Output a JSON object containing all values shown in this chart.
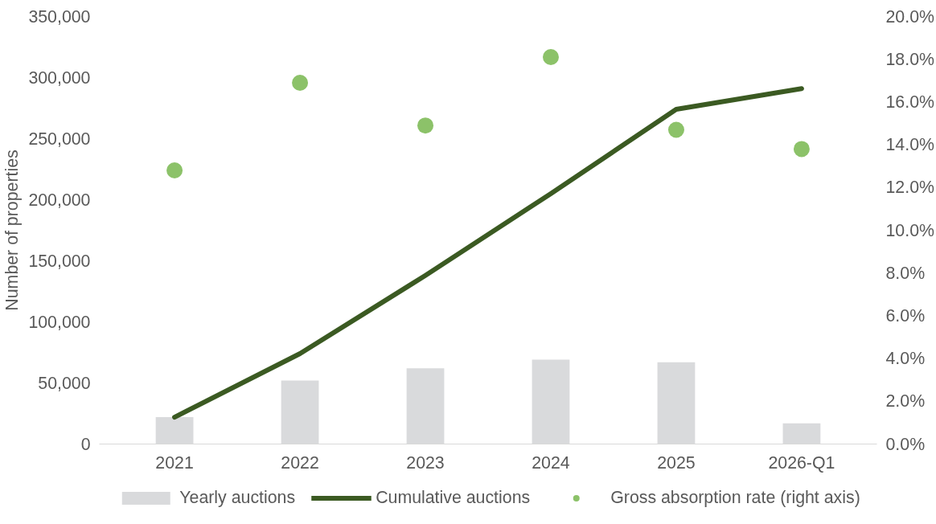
{
  "chart_data": {
    "type": "bar",
    "categories": [
      "2021",
      "2022",
      "2023",
      "2024",
      "2025",
      "2026-Q1"
    ],
    "ylabel": "Number of properties",
    "ylim": [
      0,
      350000
    ],
    "yticks": [
      {
        "value": 0,
        "label": "0"
      },
      {
        "value": 50000,
        "label": "50,000"
      },
      {
        "value": 100000,
        "label": "100,000"
      },
      {
        "value": 150000,
        "label": "150,000"
      },
      {
        "value": 200000,
        "label": "200,000"
      },
      {
        "value": 250000,
        "label": "250,000"
      },
      {
        "value": 300000,
        "label": "300,000"
      },
      {
        "value": 350000,
        "label": "350,000"
      }
    ],
    "y2lim": [
      0,
      20
    ],
    "y2ticks": [
      {
        "value": 0,
        "label": "0.0%"
      },
      {
        "value": 2,
        "label": "2.0%"
      },
      {
        "value": 4,
        "label": "4.0%"
      },
      {
        "value": 6,
        "label": "6.0%"
      },
      {
        "value": 8,
        "label": "8.0%"
      },
      {
        "value": 10,
        "label": "10.0%"
      },
      {
        "value": 12,
        "label": "12.0%"
      },
      {
        "value": 14,
        "label": "14.0%"
      },
      {
        "value": 16,
        "label": "16.0%"
      },
      {
        "value": 18,
        "label": "18.0%"
      },
      {
        "value": 20,
        "label": "20.0%"
      }
    ],
    "legend": "bottom",
    "grid": false,
    "series": [
      {
        "name": "Yearly auctions",
        "color": "#d9dadc",
        "values": [
          22000,
          52000,
          62000,
          69000,
          67000,
          17000
        ]
      },
      {
        "name": "Cumulative auctions",
        "type": "line",
        "color": "#3b5a22",
        "values": [
          22000,
          74000,
          138000,
          205000,
          274000,
          291000
        ]
      },
      {
        "name": "Gross absorption rate (right axis)",
        "type": "scatter",
        "axis": "y2",
        "color": "#8cc269",
        "marker": "circle",
        "values": [
          12.8,
          16.9,
          14.9,
          18.1,
          14.7,
          13.8
        ]
      }
    ]
  }
}
